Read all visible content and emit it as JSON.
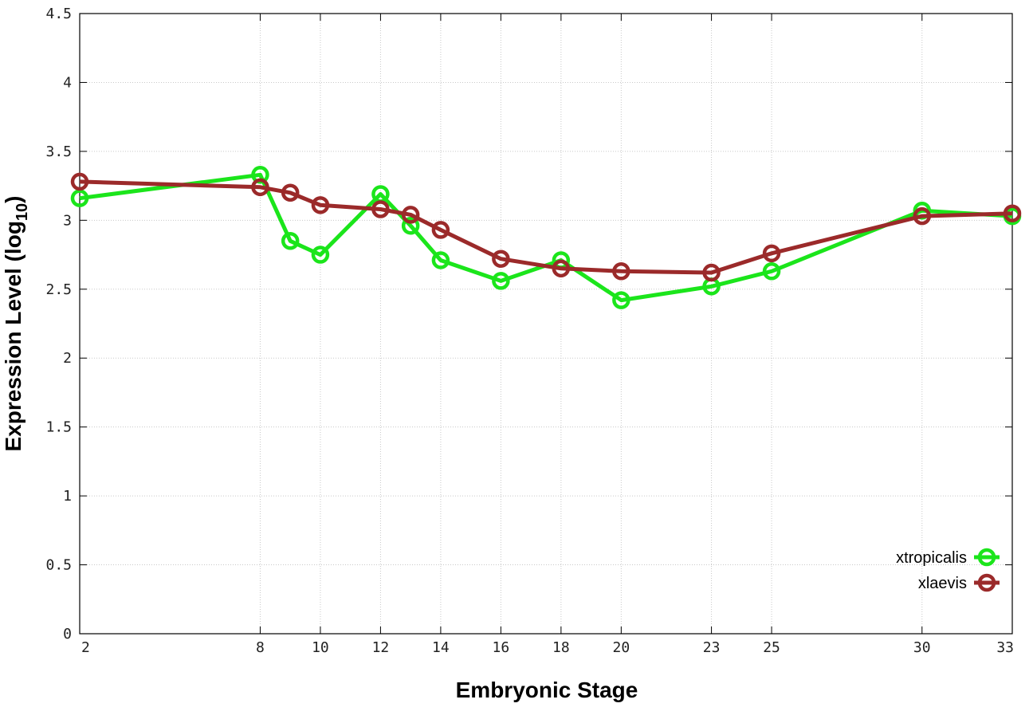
{
  "chart_data": {
    "type": "line",
    "xlabel": "Embryonic Stage",
    "ylabel_main": "Expression Level (log",
    "ylabel_sub": "10",
    "ylabel_close": ")",
    "x_ticks": [
      2,
      8,
      10,
      12,
      14,
      16,
      18,
      20,
      23,
      25,
      30,
      33
    ],
    "y_ticks": [
      "0",
      "0.5",
      "1",
      "1.5",
      "2",
      "2.5",
      "3",
      "3.5",
      "4",
      "4.5"
    ],
    "xlim": [
      2,
      33
    ],
    "ylim": [
      0,
      4.5
    ],
    "grid": true,
    "legend_position": "bottom-right",
    "series": [
      {
        "name": "xtropicalis",
        "color": "#1be51b",
        "points": [
          {
            "x": 2,
            "y": 3.16
          },
          {
            "x": 8,
            "y": 3.33
          },
          {
            "x": 9,
            "y": 2.85
          },
          {
            "x": 10,
            "y": 2.75
          },
          {
            "x": 12,
            "y": 3.19
          },
          {
            "x": 13,
            "y": 2.96
          },
          {
            "x": 14,
            "y": 2.71
          },
          {
            "x": 16,
            "y": 2.56
          },
          {
            "x": 18,
            "y": 2.71
          },
          {
            "x": 20,
            "y": 2.42
          },
          {
            "x": 23,
            "y": 2.52
          },
          {
            "x": 25,
            "y": 2.63
          },
          {
            "x": 30,
            "y": 3.07
          },
          {
            "x": 33,
            "y": 3.03
          }
        ]
      },
      {
        "name": "xlaevis",
        "color": "#9b2a2a",
        "points": [
          {
            "x": 2,
            "y": 3.28
          },
          {
            "x": 8,
            "y": 3.24
          },
          {
            "x": 9,
            "y": 3.2
          },
          {
            "x": 10,
            "y": 3.11
          },
          {
            "x": 12,
            "y": 3.08
          },
          {
            "x": 13,
            "y": 3.04
          },
          {
            "x": 14,
            "y": 2.93
          },
          {
            "x": 16,
            "y": 2.72
          },
          {
            "x": 18,
            "y": 2.65
          },
          {
            "x": 20,
            "y": 2.63
          },
          {
            "x": 23,
            "y": 2.62
          },
          {
            "x": 25,
            "y": 2.76
          },
          {
            "x": 30,
            "y": 3.03
          },
          {
            "x": 33,
            "y": 3.05
          }
        ]
      }
    ]
  }
}
